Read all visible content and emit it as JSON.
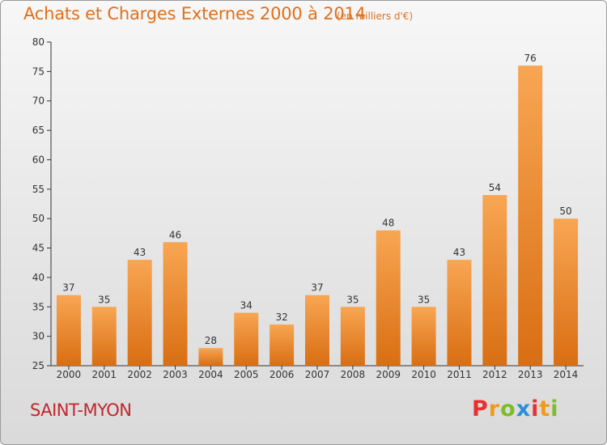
{
  "header": {
    "title": "Achats et Charges Externes 2000 à 2014",
    "subtitle": "(en milliers d'€)"
  },
  "footer": {
    "commune": "SAINT-MYON",
    "logo_letters": [
      "P",
      "r",
      "o",
      "x",
      "i",
      "t",
      "i"
    ],
    "logo_colors": [
      "#e8312f",
      "#f29a1e",
      "#7cbd2a",
      "#2c8fd6",
      "#e8312f",
      "#f29a1e",
      "#7cbd2a"
    ]
  },
  "chart_data": {
    "type": "bar",
    "title": "Achats et Charges Externes 2000 à 2014",
    "subtitle": "(en milliers d'€)",
    "categories": [
      "2000",
      "2001",
      "2002",
      "2003",
      "2004",
      "2005",
      "2006",
      "2007",
      "2008",
      "2009",
      "2010",
      "2011",
      "2012",
      "2013",
      "2014"
    ],
    "values": [
      37,
      35,
      43,
      46,
      28,
      34,
      32,
      37,
      35,
      48,
      35,
      43,
      54,
      76,
      50
    ],
    "ylim": [
      25,
      80
    ],
    "yticks": [
      25,
      30,
      35,
      40,
      45,
      50,
      55,
      60,
      65,
      70,
      75,
      80
    ],
    "grid": false,
    "bar_color_top": "#f8a653",
    "bar_color_bottom": "#d96e12"
  }
}
